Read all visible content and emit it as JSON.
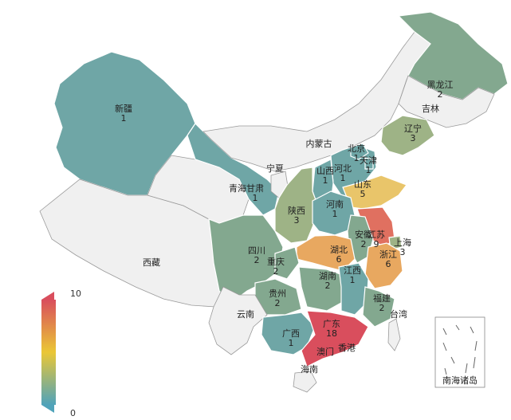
{
  "visual_map": {
    "max_label": "10",
    "min_label": "0",
    "colors": [
      "#d94e5d",
      "#eac736",
      "#50a3ba"
    ]
  },
  "colors": {
    "empty": "#f0f0f0",
    "v1": "#6fa6a6",
    "v2": "#83a88f",
    "v3": "#9eb386",
    "v5": "#e9c56a",
    "v6": "#e8a860",
    "v9": "#e07060",
    "v18": "#d94e5d"
  },
  "south_china_sea_label": "南海诸岛",
  "provinces": [
    {
      "key": "xinjiang",
      "name": "新疆",
      "value": "1"
    },
    {
      "key": "xizang",
      "name": "西藏",
      "value": ""
    },
    {
      "key": "qinghai",
      "name": "青海",
      "value": ""
    },
    {
      "key": "gansu",
      "name": "甘肃",
      "value": "1"
    },
    {
      "key": "neimenggu",
      "name": "内蒙古",
      "value": ""
    },
    {
      "key": "heilongjiang",
      "name": "黑龙江",
      "value": "2"
    },
    {
      "key": "jilin",
      "name": "吉林",
      "value": ""
    },
    {
      "key": "liaoning",
      "name": "辽宁",
      "value": "3"
    },
    {
      "key": "beijing",
      "name": "北京",
      "value": "1"
    },
    {
      "key": "tianjin",
      "name": "天津",
      "value": "1"
    },
    {
      "key": "hebei",
      "name": "河北",
      "value": "1"
    },
    {
      "key": "shanxi",
      "name": "山西",
      "value": "1"
    },
    {
      "key": "ningxia",
      "name": "宁夏",
      "value": ""
    },
    {
      "key": "shaanxi",
      "name": "陕西",
      "value": "3"
    },
    {
      "key": "shandong",
      "name": "山东",
      "value": "5"
    },
    {
      "key": "henan",
      "name": "河南",
      "value": "1"
    },
    {
      "key": "jiangsu",
      "name": "江苏",
      "value": "9"
    },
    {
      "key": "anhui",
      "name": "安徽",
      "value": "2"
    },
    {
      "key": "shanghai",
      "name": "上海",
      "value": "3"
    },
    {
      "key": "zhejiang",
      "name": "浙江",
      "value": "6"
    },
    {
      "key": "hubei",
      "name": "湖北",
      "value": "6"
    },
    {
      "key": "sichuan",
      "name": "四川",
      "value": "2"
    },
    {
      "key": "chongqing",
      "name": "重庆",
      "value": "2"
    },
    {
      "key": "hunan",
      "name": "湖南",
      "value": "2"
    },
    {
      "key": "jiangxi",
      "name": "江西",
      "value": "1"
    },
    {
      "key": "fujian",
      "name": "福建",
      "value": "2"
    },
    {
      "key": "guizhou",
      "name": "贵州",
      "value": "2"
    },
    {
      "key": "yunnan",
      "name": "云南",
      "value": ""
    },
    {
      "key": "guangxi",
      "name": "广西",
      "value": "1"
    },
    {
      "key": "guangdong",
      "name": "广东",
      "value": "18"
    },
    {
      "key": "hainan",
      "name": "海南",
      "value": ""
    },
    {
      "key": "taiwan",
      "name": "台湾",
      "value": ""
    },
    {
      "key": "xianggang",
      "name": "香港",
      "value": ""
    },
    {
      "key": "aomen",
      "name": "澳门",
      "value": ""
    }
  ]
}
